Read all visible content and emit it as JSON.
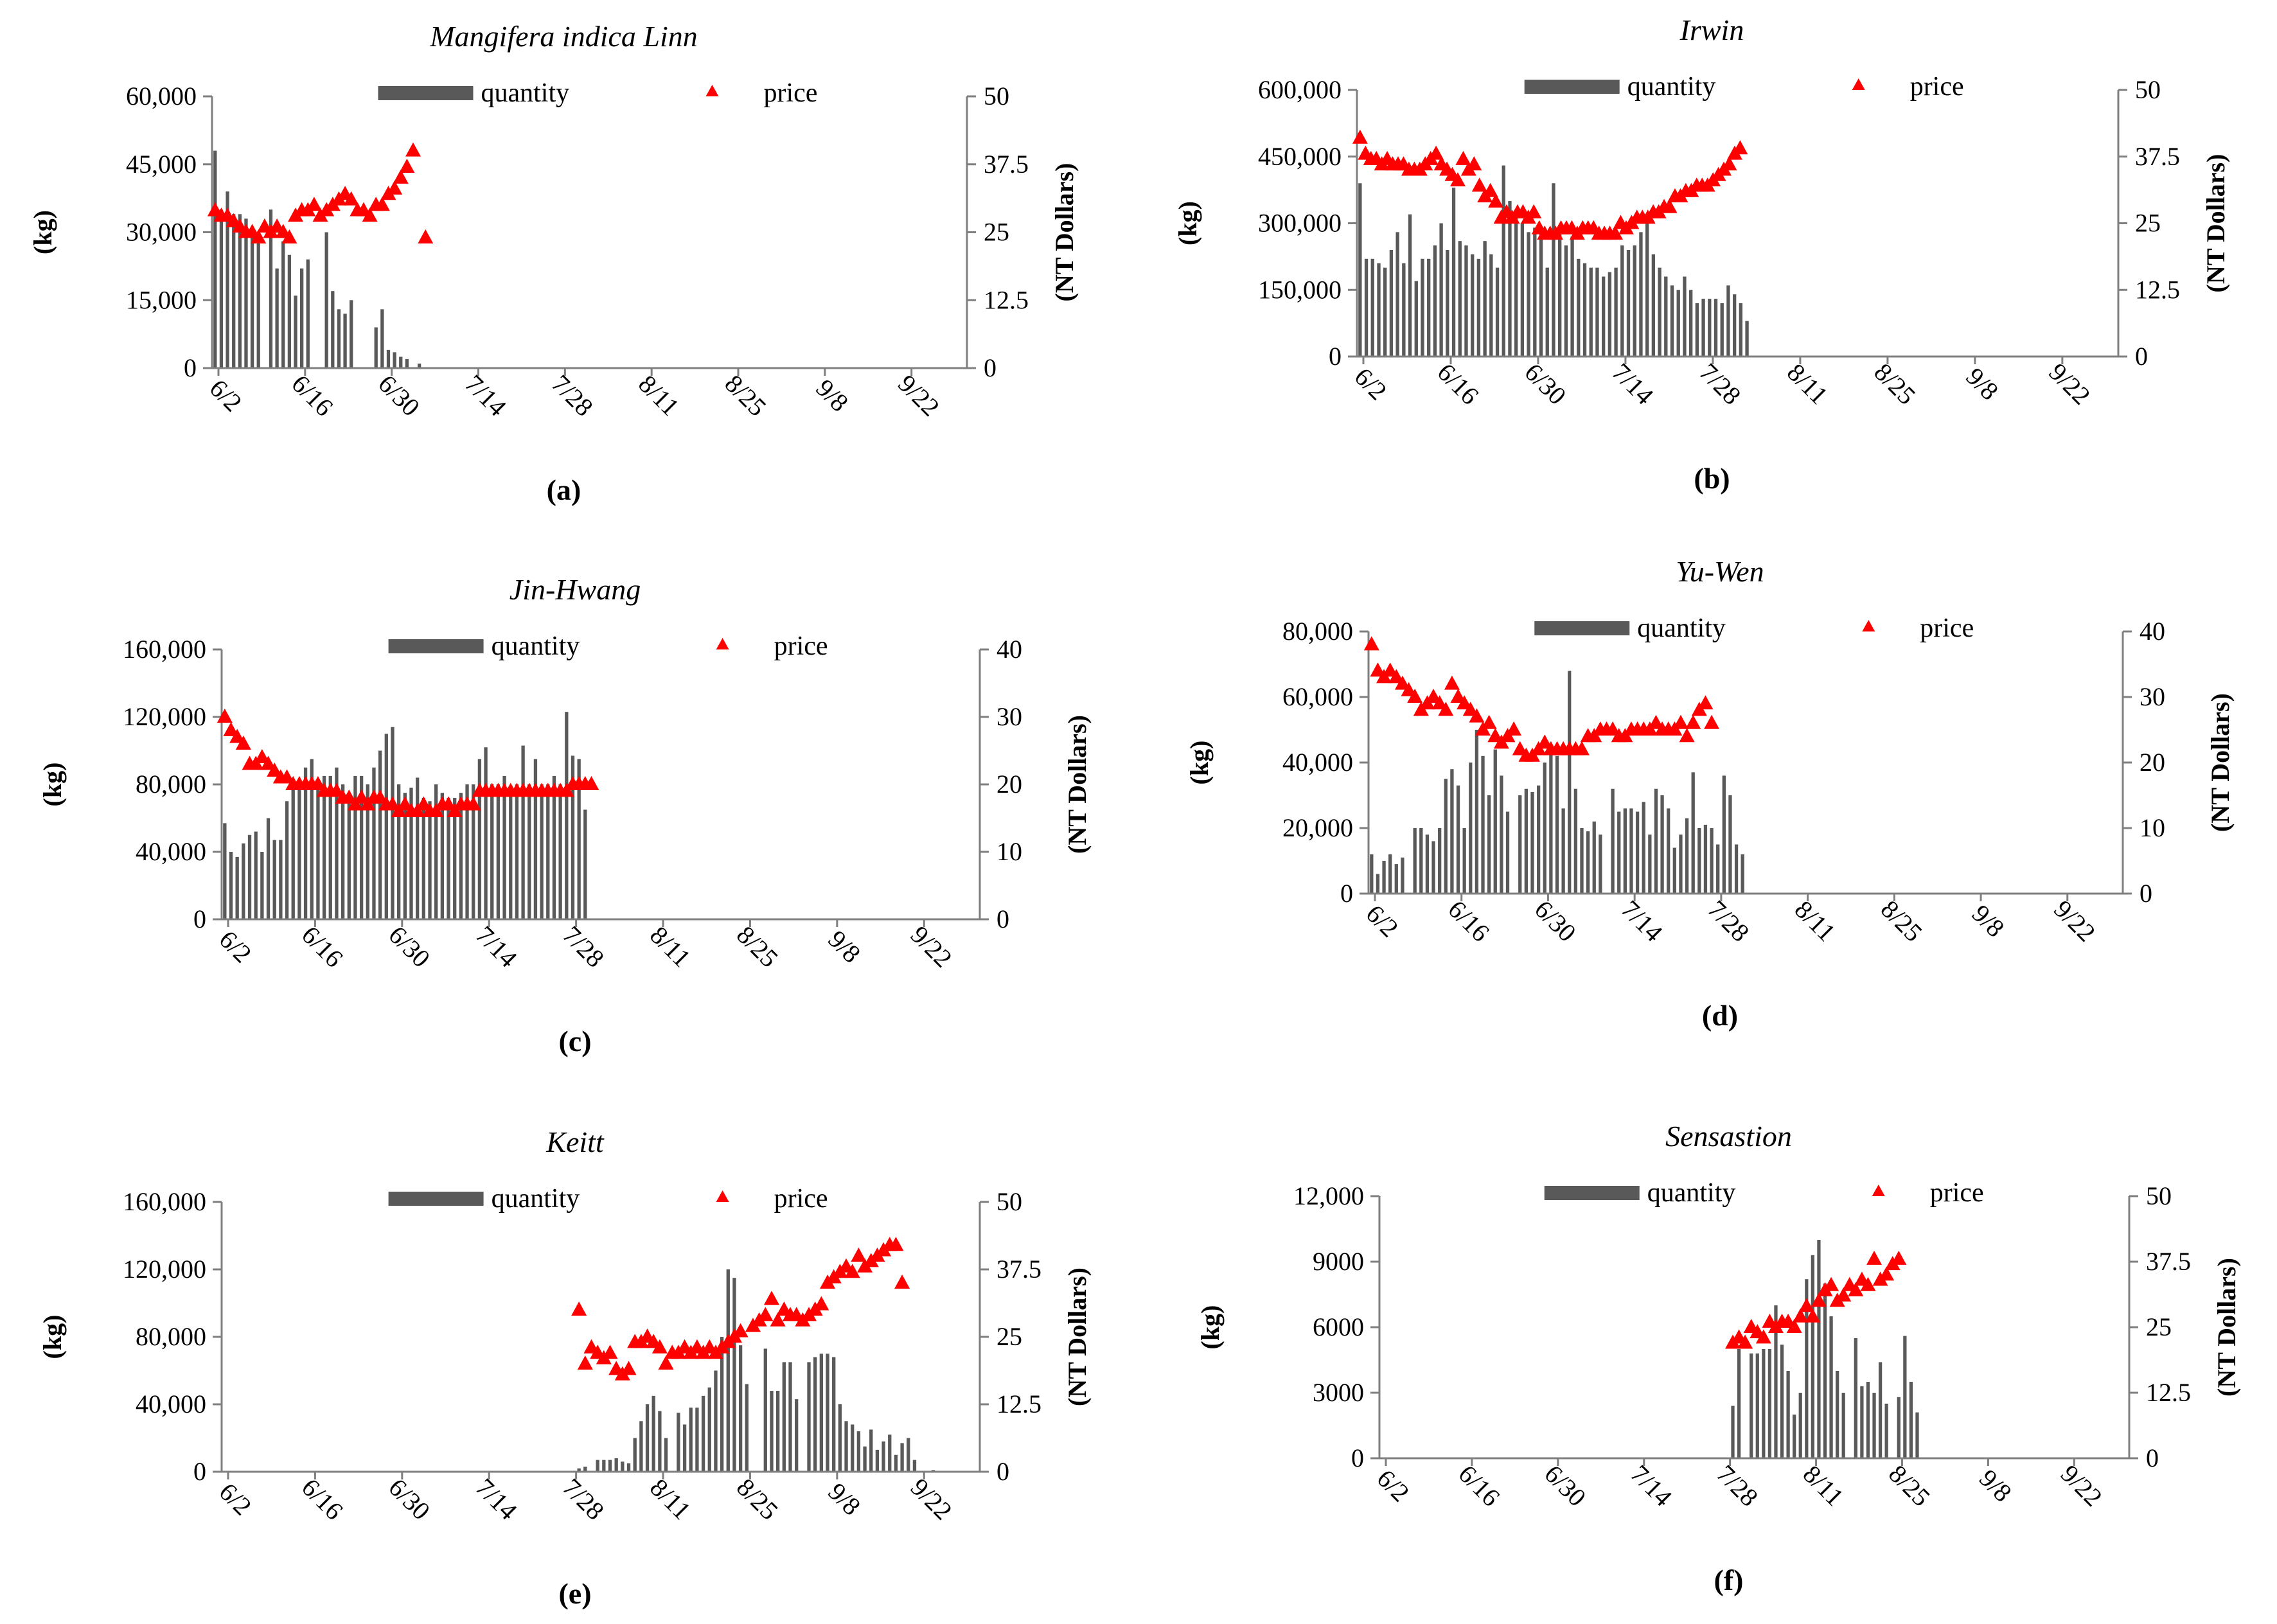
{
  "figure": {
    "legend_quantity": "quantity",
    "legend_price": "price"
  },
  "chart_data": [
    {
      "id": "a",
      "type": "bar+scatter",
      "title": "Mangifera indica Linn",
      "caption": "(a)",
      "ylabel_left": "(kg)",
      "ylabel_right": "(NT Dollars)",
      "x_ticks": [
        "6/2",
        "6/16",
        "6/30",
        "7/14",
        "7/28",
        "8/11",
        "8/25",
        "9/8",
        "9/22"
      ],
      "y_left_ticks": [
        "0",
        "15,000",
        "30,000",
        "45,000",
        "60,000"
      ],
      "y_left_max": 60000,
      "y_right_ticks": [
        "0",
        "12.5",
        "25",
        "37.5",
        "50"
      ],
      "y_right_max": 50,
      "quantity": {
        "start_day": 0,
        "values": [
          48000,
          35000,
          39000,
          34000,
          34000,
          33000,
          30000,
          28000,
          0,
          35000,
          22000,
          28000,
          25000,
          16000,
          22000,
          24000,
          0,
          0,
          30000,
          17000,
          13000,
          12000,
          15000,
          0,
          0,
          0,
          9000,
          13000,
          4000,
          3500,
          2500,
          2000,
          0,
          1000
        ]
      },
      "price": {
        "start_day": 0,
        "values": [
          29,
          28,
          28,
          27,
          26,
          25,
          25,
          24,
          26,
          25,
          26,
          25,
          24,
          28,
          29,
          29,
          30,
          28,
          29,
          30,
          31,
          32,
          31,
          29,
          29,
          28,
          30,
          30,
          32,
          33,
          35,
          37,
          40,
          null,
          24
        ]
      }
    },
    {
      "id": "b",
      "type": "bar+scatter",
      "title": "Irwin",
      "caption": "(b)",
      "ylabel_left": "(kg)",
      "ylabel_right": "(NT Dollars)",
      "x_ticks": [
        "6/2",
        "6/16",
        "6/30",
        "7/14",
        "7/28",
        "8/11",
        "8/25",
        "9/8",
        "9/22"
      ],
      "y_left_ticks": [
        "0",
        "150,000",
        "300,000",
        "450,000",
        "600,000"
      ],
      "y_left_max": 600000,
      "y_right_ticks": [
        "0",
        "12.5",
        "25",
        "37.5",
        "50"
      ],
      "y_right_max": 50,
      "quantity": {
        "start_day": 0,
        "values": [
          390000,
          220000,
          220000,
          210000,
          200000,
          240000,
          280000,
          210000,
          320000,
          170000,
          220000,
          220000,
          250000,
          300000,
          240000,
          380000,
          260000,
          250000,
          230000,
          220000,
          260000,
          230000,
          200000,
          430000,
          350000,
          330000,
          300000,
          280000,
          290000,
          290000,
          200000,
          390000,
          280000,
          250000,
          270000,
          220000,
          210000,
          200000,
          200000,
          180000,
          190000,
          200000,
          250000,
          240000,
          250000,
          280000,
          320000,
          230000,
          200000,
          180000,
          160000,
          150000,
          180000,
          150000,
          120000,
          130000,
          130000,
          130000,
          120000,
          160000,
          140000,
          120000,
          80000
        ]
      },
      "price": {
        "start_day": 0,
        "values": [
          41,
          38,
          37,
          37,
          36,
          37,
          36,
          36,
          36,
          35,
          35,
          35,
          36,
          37,
          38,
          36,
          35,
          34,
          33,
          37,
          35,
          36,
          32,
          30,
          31,
          29,
          26,
          27,
          26,
          27,
          27,
          26,
          27,
          24,
          23,
          23,
          23,
          24,
          24,
          24,
          23,
          24,
          24,
          24,
          23,
          23,
          23,
          23,
          25,
          24,
          25,
          26,
          26,
          26,
          27,
          27,
          28,
          28,
          30,
          30,
          31,
          31,
          32,
          32,
          32,
          33,
          34,
          35,
          36,
          38,
          39
        ]
      },
      "price_x_scale": 0.87
    },
    {
      "id": "c",
      "type": "bar+scatter",
      "title": "Jin-Hwang",
      "caption": "(c)",
      "ylabel_left": "(kg)",
      "ylabel_right": "(NT Dollars)",
      "x_ticks": [
        "6/2",
        "6/16",
        "6/30",
        "7/14",
        "7/28",
        "8/11",
        "8/25",
        "9/8",
        "9/22"
      ],
      "y_left_ticks": [
        "0",
        "40,000",
        "80,000",
        "120,000",
        "160,000"
      ],
      "y_left_max": 160000,
      "y_right_ticks": [
        "0",
        "10",
        "20",
        "30",
        "40"
      ],
      "y_right_max": 40,
      "quantity": {
        "start_day": 0,
        "values": [
          57000,
          40000,
          37000,
          45000,
          50000,
          52000,
          40000,
          60000,
          47000,
          47000,
          70000,
          80000,
          80000,
          90000,
          95000,
          80000,
          85000,
          85000,
          90000,
          80000,
          75000,
          85000,
          85000,
          80000,
          90000,
          100000,
          110000,
          114000,
          80000,
          75000,
          78000,
          84000,
          72000,
          70000,
          80000,
          75000,
          72000,
          72000,
          75000,
          80000,
          80000,
          95000,
          102000,
          80000,
          80000,
          85000,
          75000,
          80000,
          103000,
          80000,
          95000,
          80000,
          80000,
          85000,
          80000,
          123000,
          97000,
          95000,
          65000
        ]
      },
      "price": {
        "start_day": 0,
        "values": [
          30,
          28,
          27,
          26,
          23,
          23,
          24,
          23,
          22,
          21,
          21,
          20,
          20,
          20,
          20,
          20,
          19,
          19,
          19,
          18,
          18,
          17,
          18,
          17,
          18,
          18,
          17,
          17,
          16,
          17,
          16,
          16,
          17,
          16,
          16,
          17,
          17,
          16,
          17,
          17,
          17,
          19,
          19,
          19,
          19,
          19,
          19,
          19,
          19,
          19,
          19,
          19,
          19,
          19,
          19,
          19,
          20,
          20,
          20,
          20
        ]
      }
    },
    {
      "id": "d",
      "type": "bar+scatter",
      "title": "Yu-Wen",
      "caption": "(d)",
      "ylabel_left": "(kg)",
      "ylabel_right": "(NT Dollars)",
      "x_ticks": [
        "6/2",
        "6/16",
        "6/30",
        "7/14",
        "7/28",
        "8/11",
        "8/25",
        "9/8",
        "9/22"
      ],
      "y_left_ticks": [
        "0",
        "20,000",
        "40,000",
        "60,000",
        "80,000"
      ],
      "y_left_max": 80000,
      "y_right_ticks": [
        "0",
        "10",
        "20",
        "30",
        "40"
      ],
      "y_right_max": 40,
      "quantity": {
        "start_day": 0,
        "values": [
          12000,
          6000,
          10000,
          12000,
          9000,
          11000,
          0,
          20000,
          20000,
          18000,
          16000,
          20000,
          35000,
          38000,
          33000,
          20000,
          40000,
          50000,
          42000,
          30000,
          44000,
          36000,
          25000,
          0,
          30000,
          32000,
          31000,
          33000,
          40000,
          45000,
          42000,
          26000,
          68000,
          32000,
          20000,
          19000,
          22000,
          18000,
          0,
          32000,
          25000,
          26000,
          26000,
          25000,
          28000,
          18000,
          32000,
          30000,
          26000,
          14000,
          18000,
          23000,
          37000,
          20000,
          21000,
          20000,
          15000,
          36000,
          30000,
          15000,
          12000
        ]
      },
      "price": {
        "start_day": 0,
        "values": [
          38,
          34,
          33,
          34,
          33,
          32,
          31,
          30,
          28,
          29,
          30,
          29,
          28,
          32,
          30,
          29,
          28,
          27,
          25,
          26,
          24,
          23,
          24,
          25,
          22,
          21,
          21,
          22,
          23,
          22,
          22,
          22,
          22,
          22,
          22,
          24,
          24,
          25,
          25,
          25,
          24,
          24,
          25,
          25,
          25,
          25,
          26,
          25,
          25,
          25,
          26,
          24,
          26,
          28,
          29,
          26
        ]
      }
    },
    {
      "id": "e",
      "type": "bar+scatter",
      "title": "Keitt",
      "caption": "(e)",
      "ylabel_left": "(kg)",
      "ylabel_right": "(NT Dollars)",
      "x_ticks": [
        "6/2",
        "6/16",
        "6/30",
        "7/14",
        "7/28",
        "8/11",
        "8/25",
        "9/8",
        "9/22"
      ],
      "y_left_ticks": [
        "0",
        "40,000",
        "80,000",
        "120,000",
        "160,000"
      ],
      "y_left_max": 160000,
      "y_right_ticks": [
        "0",
        "12.5",
        "25",
        "37.5",
        "50"
      ],
      "y_right_max": 50,
      "quantity": {
        "start_day": 57,
        "values": [
          2000,
          3000,
          0,
          7000,
          7000,
          7000,
          8000,
          6000,
          5000,
          20000,
          30000,
          40000,
          45000,
          36000,
          20000,
          0,
          35000,
          28000,
          38000,
          38000,
          45000,
          50000,
          60000,
          80000,
          120000,
          115000,
          75000,
          52000,
          0,
          0,
          73000,
          48000,
          48000,
          65000,
          65000,
          43000,
          0,
          65000,
          68000,
          70000,
          70000,
          68000,
          40000,
          30000,
          28000,
          24000,
          15000,
          25000,
          13000,
          18000,
          22000,
          10000,
          17000,
          20000,
          7000,
          0,
          0,
          1000
        ]
      },
      "price": {
        "start_day": 57,
        "values": [
          30,
          20,
          23,
          22,
          21,
          22,
          19,
          18,
          19,
          24,
          24,
          25,
          24,
          23,
          20,
          22,
          22,
          23,
          22,
          23,
          22,
          23,
          22,
          23,
          24,
          25,
          26,
          null,
          27,
          28,
          29,
          32,
          28,
          30,
          29,
          29,
          28,
          29,
          30,
          31,
          35,
          36,
          37,
          38,
          37,
          40,
          38,
          39,
          40,
          41,
          42,
          42,
          35
        ]
      }
    },
    {
      "id": "f",
      "type": "bar+scatter",
      "title": "Sensastion",
      "caption": "(f)",
      "ylabel_left": "(kg)",
      "ylabel_right": "(NT Dollars)",
      "x_ticks": [
        "6/2",
        "6/16",
        "6/30",
        "7/14",
        "7/28",
        "8/11",
        "8/25",
        "9/8",
        "9/22"
      ],
      "y_left_ticks": [
        "0",
        "3000",
        "6000",
        "9000",
        "12,000"
      ],
      "y_left_max": 12000,
      "y_right_ticks": [
        "0",
        "12.5",
        "25",
        "37.5",
        "50"
      ],
      "y_right_max": 50,
      "quantity": {
        "start_day": 57,
        "values": [
          2400,
          5000,
          0,
          4800,
          4800,
          5000,
          5000,
          7000,
          5200,
          4000,
          2000,
          3000,
          8200,
          9300,
          10000,
          8000,
          6500,
          4000,
          3000,
          0,
          5500,
          3300,
          3500,
          3000,
          4400,
          2500,
          0,
          2800,
          5600,
          3500,
          2100
        ]
      },
      "price": {
        "start_day": 57,
        "values": [
          22,
          23,
          22,
          25,
          24,
          23,
          26,
          25,
          26,
          26,
          25,
          27,
          29,
          27,
          30,
          32,
          33,
          30,
          31,
          33,
          32,
          34,
          33,
          38,
          34,
          35,
          37,
          38
        ]
      }
    }
  ]
}
